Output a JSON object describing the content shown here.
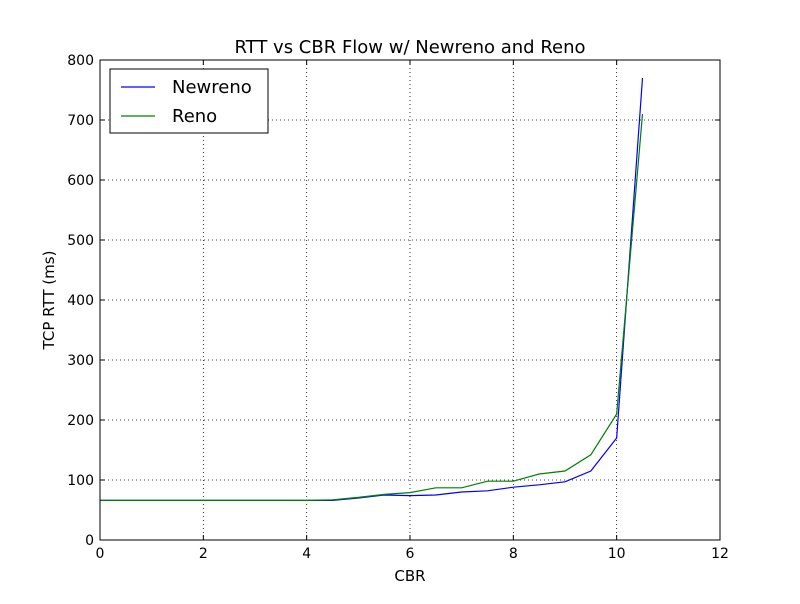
{
  "chart_data": {
    "type": "line",
    "title": "RTT vs CBR Flow w/ Newreno and Reno",
    "xlabel": "CBR",
    "ylabel": "TCP RTT (ms)",
    "xlim": [
      0,
      12
    ],
    "ylim": [
      0,
      800
    ],
    "xticks": [
      0,
      2,
      4,
      6,
      8,
      10,
      12
    ],
    "yticks": [
      0,
      100,
      200,
      300,
      400,
      500,
      600,
      700,
      800
    ],
    "xtick_labels": [
      "0",
      "2",
      "4",
      "6",
      "8",
      "10",
      "12"
    ],
    "ytick_labels": [
      "0",
      "100",
      "200",
      "300",
      "400",
      "500",
      "600",
      "700",
      "800"
    ],
    "grid": true,
    "legend_position": "top-left",
    "series": [
      {
        "name": "Newreno",
        "color": "#0000ff",
        "x": [
          0,
          0.5,
          1,
          1.5,
          2,
          2.5,
          3,
          3.5,
          4,
          4.5,
          5,
          5.5,
          6,
          6.5,
          7,
          7.5,
          8,
          8.5,
          9,
          9.5,
          10,
          10.5
        ],
        "y": [
          66,
          66,
          66,
          66,
          66,
          66,
          66,
          66,
          66,
          66,
          70,
          75,
          74,
          75,
          80,
          82,
          88,
          92,
          97,
          115,
          170,
          770
        ]
      },
      {
        "name": "Reno",
        "color": "#008000",
        "x": [
          0,
          0.5,
          1,
          1.5,
          2,
          2.5,
          3,
          3.5,
          4,
          4.5,
          5,
          5.5,
          6,
          6.5,
          7,
          7.5,
          8,
          8.5,
          9,
          9.5,
          10,
          10.5
        ],
        "y": [
          66,
          66,
          66,
          66,
          66,
          66,
          66,
          66,
          66,
          67,
          71,
          76,
          79,
          87,
          87,
          98,
          98,
          110,
          115,
          142,
          210,
          710
        ]
      }
    ]
  }
}
